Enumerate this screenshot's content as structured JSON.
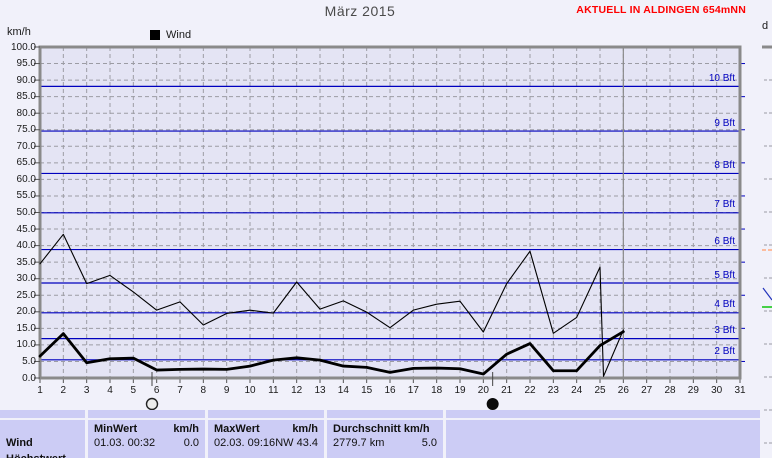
{
  "header": {
    "title": "März 2015",
    "status_banner": "AKTUELL IN ALDINGEN 654mNN"
  },
  "adjacent_panel": {
    "label": "d"
  },
  "chart_data": {
    "type": "line",
    "title": "März 2015",
    "ylabel": "km/h",
    "legend_label": "Wind",
    "xlim": [
      1,
      31
    ],
    "ylim": [
      0,
      100
    ],
    "ytick_step": 5,
    "ytick_labels": [
      "0.0",
      "5.0",
      "10.0",
      "15.0",
      "20.0",
      "25.0",
      "30.0",
      "35.0",
      "40.0",
      "45.0",
      "50.0",
      "55.0",
      "60.0",
      "65.0",
      "70.0",
      "75.0",
      "80.0",
      "85.0",
      "90.0",
      "95.0",
      "100.0"
    ],
    "xtick_labels": [
      "1",
      "2",
      "3",
      "4",
      "5",
      "6",
      "7",
      "8",
      "9",
      "10",
      "11",
      "12",
      "13",
      "14",
      "15",
      "16",
      "17",
      "18",
      "19",
      "20",
      "21",
      "22",
      "23",
      "24",
      "25",
      "26",
      "27",
      "28",
      "29",
      "30",
      "31"
    ],
    "grid": true,
    "series": [
      {
        "name": "wind-peak",
        "style": "thin",
        "points": [
          [
            1,
            34.5
          ],
          [
            2,
            43.4
          ],
          [
            3,
            28.5
          ],
          [
            4,
            31.0
          ],
          [
            5,
            26.0
          ],
          [
            6,
            20.5
          ],
          [
            7,
            23.0
          ],
          [
            8,
            16.0
          ],
          [
            9,
            19.5
          ],
          [
            10,
            20.5
          ],
          [
            11,
            19.6
          ],
          [
            12,
            29.0
          ],
          [
            13,
            20.8
          ],
          [
            14,
            23.3
          ],
          [
            15,
            19.9
          ],
          [
            16,
            15.2
          ],
          [
            17,
            20.5
          ],
          [
            18,
            22.3
          ],
          [
            19,
            23.2
          ],
          [
            20,
            13.9
          ],
          [
            21,
            28.5
          ],
          [
            22,
            38.3
          ],
          [
            23,
            13.5
          ],
          [
            24,
            18.3
          ],
          [
            25,
            33.5
          ],
          [
            25.15,
            0.5
          ],
          [
            26,
            14.5
          ]
        ]
      },
      {
        "name": "wind-average",
        "style": "thick",
        "points": [
          [
            1,
            6.6
          ],
          [
            2,
            13.4
          ],
          [
            3,
            4.6
          ],
          [
            4,
            5.8
          ],
          [
            5,
            6.0
          ],
          [
            6,
            2.4
          ],
          [
            7,
            2.6
          ],
          [
            8,
            2.7
          ],
          [
            9,
            2.6
          ],
          [
            10,
            3.6
          ],
          [
            11,
            5.4
          ],
          [
            12,
            6.1
          ],
          [
            13,
            5.4
          ],
          [
            14,
            3.6
          ],
          [
            15,
            3.2
          ],
          [
            16,
            1.7
          ],
          [
            17,
            2.9
          ],
          [
            18,
            3.0
          ],
          [
            19,
            2.8
          ],
          [
            20,
            1.2
          ],
          [
            21,
            7.2
          ],
          [
            22,
            10.4
          ],
          [
            23,
            2.2
          ],
          [
            24,
            2.2
          ],
          [
            25,
            9.8
          ],
          [
            26,
            14.0
          ]
        ]
      }
    ],
    "beaufort_lines": [
      {
        "label": "2 Bft",
        "kmh": 5.5
      },
      {
        "label": "3 Bft",
        "kmh": 11.9
      },
      {
        "label": "4 Bft",
        "kmh": 19.7
      },
      {
        "label": "5 Bft",
        "kmh": 28.7
      },
      {
        "label": "6 Bft",
        "kmh": 38.8
      },
      {
        "label": "7 Bft",
        "kmh": 49.9
      },
      {
        "label": "8 Bft",
        "kmh": 61.8
      },
      {
        "label": "9 Bft",
        "kmh": 74.6
      },
      {
        "label": "10 Bft",
        "kmh": 88.1
      }
    ],
    "moon_markers": [
      {
        "day": 5.8,
        "phase": "full-moon"
      },
      {
        "day": 20.4,
        "phase": "new-moon"
      }
    ],
    "current_day_marker": 26
  },
  "stats_table": {
    "row_label": "Wind",
    "next_row_label_clipped": "Höchstwert",
    "min": {
      "header": "MinWert",
      "unit": "km/h",
      "datetime": "01.03.  00:32",
      "value": "0.0"
    },
    "max": {
      "header": "MaxWert",
      "unit": "km/h",
      "datetime": "02.03.  09:16",
      "direction_value": "NW 43.4"
    },
    "avg": {
      "header": "Durchschnitt km/h",
      "windrun": "2779.7 km",
      "value": "5.0"
    }
  },
  "colors": {
    "status_red": "#FF0000",
    "beaufort_blue": "#0000BE",
    "series_black": "#000000",
    "plot_bg": "#E4E4F4",
    "page_bg": "#F1F1FA",
    "grid_gray": "#9C9CA4",
    "frame_gray": "#8A8A8A",
    "table_cell_bg": "#CCCCF5",
    "sliver_orange": "#FFAA80",
    "sliver_green": "#33CC33",
    "sliver_blue": "#2233BB"
  }
}
